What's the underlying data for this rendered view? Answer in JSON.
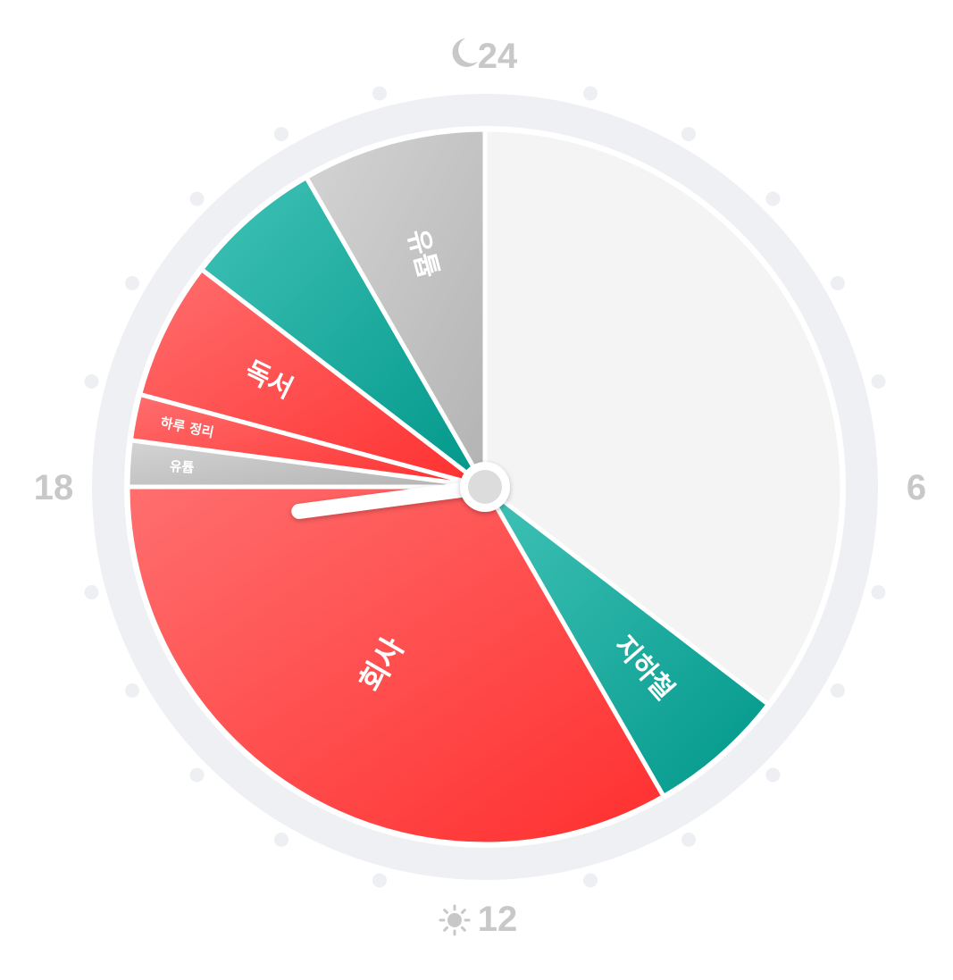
{
  "clock": {
    "hour_labels": [
      {
        "hour": 24,
        "text": "24",
        "icon": "moon-icon"
      },
      {
        "hour": 6,
        "text": "6",
        "icon": ""
      },
      {
        "hour": 12,
        "text": "12",
        "icon": "sun-icon"
      },
      {
        "hour": 18,
        "text": "18",
        "icon": ""
      }
    ],
    "current_hour": 17.5,
    "colors": {
      "ring": "#eff0f4",
      "empty": "#f4f4f4",
      "dots": "#eeeff3",
      "labels": "#c8c8c8"
    },
    "segments": [
      {
        "label": "",
        "start": 0,
        "end": 8.5,
        "color": "empty"
      },
      {
        "label": "지하철",
        "start": 8.5,
        "end": 10,
        "color": "teal"
      },
      {
        "label": "회사",
        "start": 10,
        "end": 18,
        "color": "red"
      },
      {
        "label": "유튭",
        "start": 18,
        "end": 18.5,
        "color": "gray"
      },
      {
        "label": "하루 정리",
        "start": 18.5,
        "end": 19,
        "color": "red"
      },
      {
        "label": "독서",
        "start": 19,
        "end": 20.5,
        "color": "red"
      },
      {
        "label": "",
        "start": 20.5,
        "end": 22,
        "color": "teal"
      },
      {
        "label": "유튭",
        "start": 22,
        "end": 24,
        "color": "gray"
      }
    ]
  }
}
